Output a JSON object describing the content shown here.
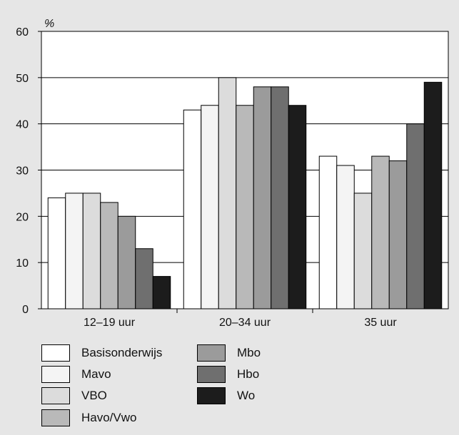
{
  "chart_data": {
    "type": "bar",
    "ylabel": "%",
    "ylim": [
      0,
      60
    ],
    "yticks": [
      0,
      10,
      20,
      30,
      40,
      50,
      60
    ],
    "categories": [
      "12–19 uur",
      "20–34 uur",
      "35 uur"
    ],
    "series": [
      {
        "name": "Basisonderwijs",
        "color": "#ffffff",
        "values": [
          24,
          43,
          33
        ]
      },
      {
        "name": "Mavo",
        "color": "#f4f4f4",
        "values": [
          25,
          44,
          31
        ]
      },
      {
        "name": "VBO",
        "color": "#dcdcdc",
        "values": [
          25,
          50,
          25
        ]
      },
      {
        "name": "Havo/Vwo",
        "color": "#b9b9b9",
        "values": [
          23,
          44,
          33
        ]
      },
      {
        "name": "Mbo",
        "color": "#9b9b9b",
        "values": [
          20,
          48,
          32
        ]
      },
      {
        "name": "Hbo",
        "color": "#6f6f6f",
        "values": [
          13,
          48,
          40
        ]
      },
      {
        "name": "Wo",
        "color": "#1c1c1c",
        "values": [
          7,
          44,
          49
        ]
      }
    ],
    "grid": true,
    "legend_position": "bottom-left"
  }
}
